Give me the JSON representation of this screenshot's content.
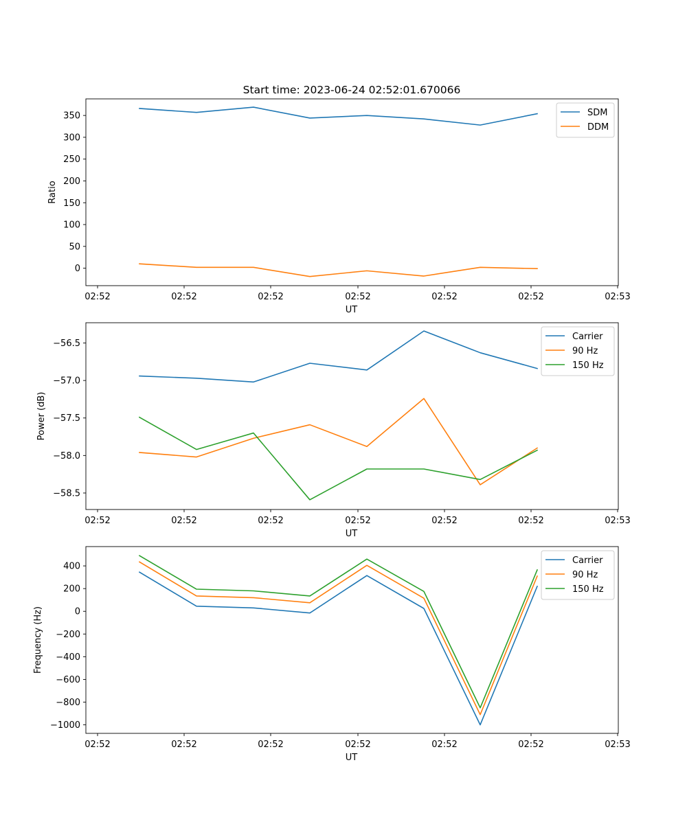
{
  "chart_data": [
    {
      "type": "line",
      "title": "Start time: 2023-06-24 02:52:01.670066",
      "xlabel": "UT",
      "ylabel": "Ratio",
      "xticklabels": [
        "02:52",
        "02:52",
        "02:52",
        "02:52",
        "02:52",
        "02:52",
        "02:53"
      ],
      "yticks": [
        0,
        50,
        100,
        150,
        200,
        250,
        300,
        350
      ],
      "ylim": [
        -40,
        388
      ],
      "legend_position": "upper right",
      "grid": false,
      "series": [
        {
          "name": "SDM",
          "color": "#1f77b4",
          "values": [
            366,
            357,
            369,
            344,
            350,
            342,
            328,
            354
          ]
        },
        {
          "name": "DDM",
          "color": "#ff7f0e",
          "values": [
            10,
            2,
            2,
            -19,
            -6,
            -18,
            2,
            -1
          ]
        }
      ]
    },
    {
      "type": "line",
      "title": "",
      "xlabel": "UT",
      "ylabel": "Power (dB)",
      "xticklabels": [
        "02:52",
        "02:52",
        "02:52",
        "02:52",
        "02:52",
        "02:52",
        "02:53"
      ],
      "yticks": [
        -58.5,
        -58.0,
        -57.5,
        -57.0,
        -56.5
      ],
      "yticklabels": [
        "−58.5",
        "−58.0",
        "−57.5",
        "−57.0",
        "−56.5"
      ],
      "ylim": [
        -58.72,
        -56.23
      ],
      "legend_position": "upper right",
      "grid": false,
      "series": [
        {
          "name": "Carrier",
          "color": "#1f77b4",
          "values": [
            -56.94,
            -56.97,
            -57.02,
            -56.77,
            -56.86,
            -56.34,
            -56.63,
            -56.84
          ]
        },
        {
          "name": "90 Hz",
          "color": "#ff7f0e",
          "values": [
            -57.96,
            -58.02,
            -57.77,
            -57.59,
            -57.88,
            -57.24,
            -58.39,
            -57.9
          ]
        },
        {
          "name": "150 Hz",
          "color": "#2ca02c",
          "values": [
            -57.49,
            -57.92,
            -57.7,
            -58.59,
            -58.18,
            -58.18,
            -58.32,
            -57.93
          ]
        }
      ]
    },
    {
      "type": "line",
      "title": "",
      "xlabel": "UT",
      "ylabel": "Frequency (Hz)",
      "xticklabels": [
        "02:52",
        "02:52",
        "02:52",
        "02:52",
        "02:52",
        "02:52",
        "02:53"
      ],
      "yticks": [
        -1000,
        -800,
        -600,
        -400,
        -200,
        0,
        200,
        400
      ],
      "yticklabels": [
        "−1000",
        "−800",
        "−600",
        "−400",
        "−200",
        "0",
        "200",
        "400"
      ],
      "ylim": [
        -1075,
        570
      ],
      "legend_position": "upper right",
      "grid": false,
      "series": [
        {
          "name": "Carrier",
          "color": "#1f77b4",
          "values": [
            345,
            45,
            30,
            -15,
            315,
            25,
            -1000,
            220
          ]
        },
        {
          "name": "90 Hz",
          "color": "#ff7f0e",
          "values": [
            435,
            135,
            120,
            75,
            405,
            115,
            -910,
            310
          ]
        },
        {
          "name": "150 Hz",
          "color": "#2ca02c",
          "values": [
            490,
            195,
            180,
            135,
            460,
            175,
            -850,
            365
          ]
        }
      ]
    }
  ]
}
